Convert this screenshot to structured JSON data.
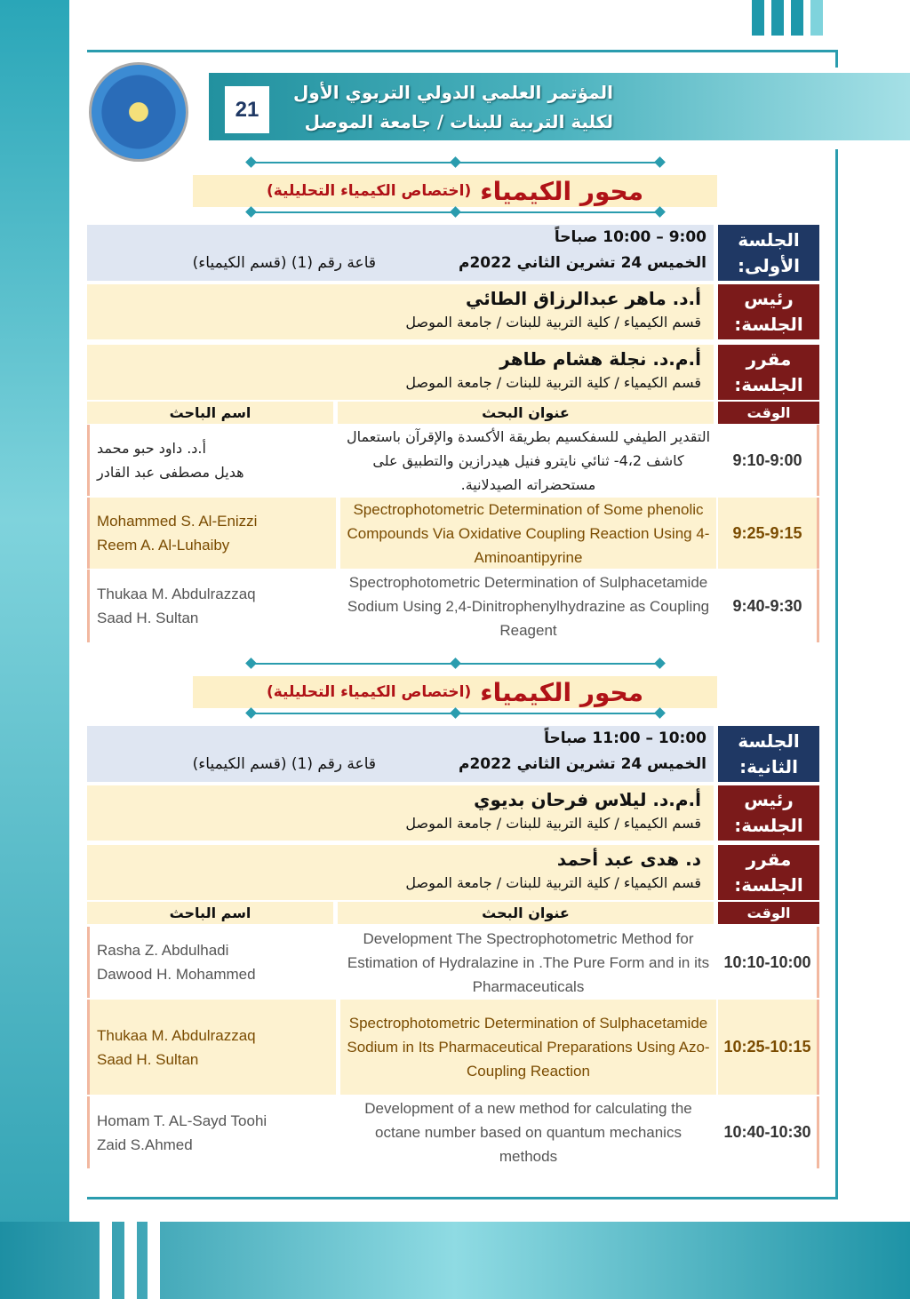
{
  "header": {
    "page_number": "21",
    "conference_line1": "المؤتمر العلمي الدولي التربوي الأول",
    "conference_line2": "لكلية التربية للبنات / جامعة الموصل"
  },
  "colors": {
    "teal": "#2a9cae",
    "navy": "#1f3864",
    "maroon": "#7b1a1a",
    "beige": "#fdf2d0",
    "topic_red": "#b01217"
  },
  "sections": [
    {
      "topic_main": "محور الكيمياء",
      "topic_sub": "(اختصاص الكيمياء التحليلية)",
      "session_label": "الجلسة الأولى:",
      "time": "9:00 – 10:00 صباحاً",
      "date": "الخميس 24 تشرين الثاني 2022م",
      "room": "قاعة رقم (1) (قسم الكيمياء)",
      "chair_label": "رئيس الجلسة:",
      "chair_name": "أ.د. ماهر عبدالرزاق الطائي",
      "chair_affil": "قسم الكيمياء / كلية التربية للبنات / جامعة الموصل",
      "rap_label": "مقرر الجلسة:",
      "rap_name": "أ.م.د. نجلة هشام طاهر",
      "rap_affil": "قسم الكيمياء / كلية التربية للبنات / جامعة الموصل",
      "col_time": "الوقت",
      "col_title": "عنوان البحث",
      "col_author": "اسم الباحث",
      "rows": [
        {
          "time": "9:10-9:00",
          "title": "التقدير الطيفي للسفكسيم بطريقة الأكسدة والإقرآن باستعمال كاشف 4،2- ثنائي نايترو فنيل هيدرازين والتطبيق على مستحضراته الصيدلانية.",
          "authors": [
            "أ.د. داود حبو محمد",
            "هديل مصطفى عبد القادر"
          ]
        },
        {
          "time": "9:25-9:15",
          "title": "Spectrophotometric Determination of Some phenolic Compounds Via Oxidative Coupling Reaction Using 4-Aminoantipyrine",
          "authors": [
            "Mohammed S. Al-Enizzi",
            "Reem A. Al-Luhaiby"
          ]
        },
        {
          "time": "9:40-9:30",
          "title": "Spectrophotometric Determination of Sulphacetamide Sodium Using 2,4-Dinitrophenylhydrazine as Coupling Reagent",
          "authors": [
            "Thukaa M. Abdulrazzaq",
            "Saad H.  Sultan"
          ]
        }
      ]
    },
    {
      "topic_main": "محور الكيمياء",
      "topic_sub": "(اختصاص الكيمياء التحليلية)",
      "session_label": "الجلسة الثانية:",
      "time": "10:00 – 11:00 صباحاً",
      "date": "الخميس 24 تشرين الثاني 2022م",
      "room": "قاعة رقم (1) (قسم الكيمياء)",
      "chair_label": "رئيس الجلسة:",
      "chair_name": "أ.م.د. ليلاس فرحان بديوي",
      "chair_affil": "قسم الكيمياء / كلية التربية للبنات / جامعة الموصل",
      "rap_label": "مقرر الجلسة:",
      "rap_name": "د. هدى عبد أحمد",
      "rap_affil": "قسم الكيمياء / كلية التربية للبنات / جامعة الموصل",
      "col_time": "الوقت",
      "col_title": "عنوان البحث",
      "col_author": "اسم الباحث",
      "rows": [
        {
          "time": "10:10-10:00",
          "title": "Development The Spectrophotometric Method for Estimation of Hydralazine in .The Pure Form and in its Pharmaceuticals",
          "authors": [
            "Rasha Z. Abdulhadi",
            "Dawood H. Mohammed"
          ]
        },
        {
          "time": "10:25-10:15",
          "title": "Spectrophotometric Determination of Sulphacetamide Sodium in Its Pharmaceutical Preparations Using Azo-Coupling Reaction",
          "authors": [
            "Thukaa M. Abdulrazzaq",
            "Saad H.  Sultan"
          ]
        },
        {
          "time": "10:40-10:30",
          "title": "Development of a new method for calculating the octane number based on quantum mechanics methods",
          "authors": [
            "Homam T. AL-Sayd Toohi",
            " Zaid S.Ahmed"
          ]
        }
      ]
    }
  ]
}
